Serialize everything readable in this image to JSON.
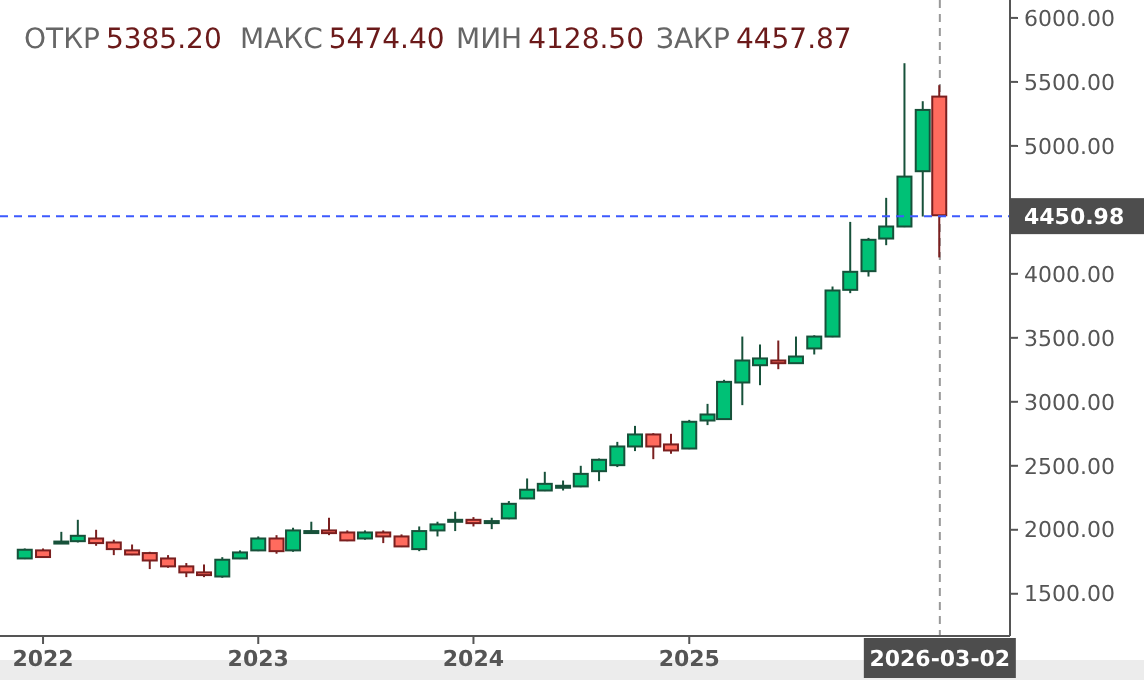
{
  "chart_data": {
    "type": "candlestick",
    "x": [
      "2021-12",
      "2022-01",
      "2022-02",
      "2022-03",
      "2022-04",
      "2022-05",
      "2022-06",
      "2022-07",
      "2022-08",
      "2022-09",
      "2022-10",
      "2022-11",
      "2022-12",
      "2023-01",
      "2023-02",
      "2023-03",
      "2023-04",
      "2023-05",
      "2023-06",
      "2023-07",
      "2023-08",
      "2023-09",
      "2023-10",
      "2023-11",
      "2023-12",
      "2024-01",
      "2024-02",
      "2024-03",
      "2024-04",
      "2024-05",
      "2024-06",
      "2024-07",
      "2024-08",
      "2024-09",
      "2024-10",
      "2024-11",
      "2024-12",
      "2025-01",
      "2025-02",
      "2025-03",
      "2025-04",
      "2025-05",
      "2025-06",
      "2025-07",
      "2025-08",
      "2025-09",
      "2025-10",
      "2025-11",
      "2025-12",
      "2026-01",
      "2026-02",
      "2026-03"
    ],
    "ohlc": [
      [
        1776,
        1854,
        1771,
        1844
      ],
      [
        1839,
        1854,
        1781,
        1787
      ],
      [
        1903,
        1984,
        1896,
        1908
      ],
      [
        1911,
        2078,
        1901,
        1953
      ],
      [
        1932,
        2000,
        1875,
        1896
      ],
      [
        1901,
        1922,
        1802,
        1849
      ],
      [
        1839,
        1885,
        1802,
        1807
      ],
      [
        1818,
        1828,
        1693,
        1760
      ],
      [
        1776,
        1802,
        1703,
        1714
      ],
      [
        1714,
        1740,
        1630,
        1667
      ],
      [
        1667,
        1729,
        1630,
        1646
      ],
      [
        1635,
        1786,
        1625,
        1766
      ],
      [
        1776,
        1839,
        1771,
        1823
      ],
      [
        1839,
        1948,
        1833,
        1932
      ],
      [
        1932,
        1958,
        1813,
        1833
      ],
      [
        1839,
        2016,
        1828,
        1995
      ],
      [
        1979,
        2063,
        1974,
        1990
      ],
      [
        1995,
        2094,
        1958,
        1974
      ],
      [
        1979,
        1995,
        1911,
        1917
      ],
      [
        1932,
        1995,
        1922,
        1979
      ],
      [
        1979,
        1995,
        1896,
        1948
      ],
      [
        1948,
        1964,
        1865,
        1870
      ],
      [
        1849,
        2026,
        1833,
        1990
      ],
      [
        1995,
        2063,
        1948,
        2042
      ],
      [
        2075,
        2141,
        1990,
        2078
      ],
      [
        2078,
        2099,
        2026,
        2052
      ],
      [
        2066,
        2094,
        2005,
        2068
      ],
      [
        2089,
        2224,
        2083,
        2203
      ],
      [
        2245,
        2401,
        2240,
        2313
      ],
      [
        2307,
        2453,
        2302,
        2359
      ],
      [
        2342,
        2385,
        2307,
        2344
      ],
      [
        2339,
        2500,
        2333,
        2437
      ],
      [
        2458,
        2557,
        2380,
        2547
      ],
      [
        2505,
        2687,
        2490,
        2651
      ],
      [
        2651,
        2812,
        2615,
        2745
      ],
      [
        2745,
        2755,
        2552,
        2651
      ],
      [
        2667,
        2750,
        2594,
        2620
      ],
      [
        2635,
        2859,
        2630,
        2844
      ],
      [
        2854,
        2984,
        2818,
        2901
      ],
      [
        2865,
        3172,
        2859,
        3156
      ],
      [
        3151,
        3510,
        2974,
        3323
      ],
      [
        3286,
        3448,
        3130,
        3339
      ],
      [
        3323,
        3479,
        3255,
        3302
      ],
      [
        3302,
        3510,
        3297,
        3354
      ],
      [
        3417,
        3520,
        3370,
        3510
      ],
      [
        3510,
        3901,
        3505,
        3870
      ],
      [
        3875,
        4406,
        3849,
        4016
      ],
      [
        4021,
        4281,
        3979,
        4266
      ],
      [
        4276,
        4594,
        4224,
        4370
      ],
      [
        4370,
        5646,
        4365,
        4760
      ],
      [
        4802,
        5349,
        4448,
        5281
      ],
      [
        5385.2,
        5474.4,
        4128.5,
        4457.87
      ]
    ],
    "colors": [
      "#00c176",
      "#ff6b5e",
      "#00c176",
      "#00c176",
      "#ff6b5e",
      "#ff6b5e",
      "#ff6b5e",
      "#ff6b5e",
      "#ff6b5e",
      "#ff6b5e",
      "#ff6b5e",
      "#00c176",
      "#00c176",
      "#00c176",
      "#ff6b5e",
      "#00c176",
      "#00c176",
      "#ff6b5e",
      "#ff6b5e",
      "#00c176",
      "#ff6b5e",
      "#ff6b5e",
      "#00c176",
      "#00c176",
      "#00c176",
      "#ff6b5e",
      "#00c176",
      "#00c176",
      "#00c176",
      "#00c176",
      "#00c176",
      "#00c176",
      "#00c176",
      "#00c176",
      "#00c176",
      "#ff6b5e",
      "#ff6b5e",
      "#00c176",
      "#00c176",
      "#00c176",
      "#00c176",
      "#00c176",
      "#ff6b5e",
      "#00c176",
      "#00c176",
      "#00c176",
      "#00c176",
      "#00c176",
      "#00c176",
      "#00c176",
      "#00c176",
      "#ff6b5e"
    ],
    "xlim": [
      "2021-10-20",
      "2026-06-29"
    ],
    "xticks": [
      "2022",
      "2023",
      "2024",
      "2025"
    ],
    "ylim": [
      1170,
      6140
    ],
    "yticks": [
      {
        "value": 1500,
        "label": "1500.00"
      },
      {
        "value": 2000,
        "label": "2000.00"
      },
      {
        "value": 2500,
        "label": "2500.00"
      },
      {
        "value": 3000,
        "label": "3000.00"
      },
      {
        "value": 3500,
        "label": "3500.00"
      },
      {
        "value": 4000,
        "label": "4000.00"
      },
      {
        "value": 5000,
        "label": "5000.00"
      },
      {
        "value": 5500,
        "label": "5500.00"
      },
      {
        "value": 6000,
        "label": "6000.00"
      }
    ],
    "ref_lines": [
      {
        "axis": "y",
        "value": 4450.98,
        "label": "4450.98",
        "color": "#3d5afe",
        "line_style": "dashed"
      },
      {
        "axis": "x",
        "value": "2026-03-02",
        "label": "2026-03-02",
        "color": "#999999",
        "line_style": "dashed"
      }
    ],
    "annotations": [
      "ОТКР 5385.20",
      "МАКС 5474.40",
      "МИН 4128.50",
      "ЗАКР 4457.87"
    ],
    "grid": false
  }
}
